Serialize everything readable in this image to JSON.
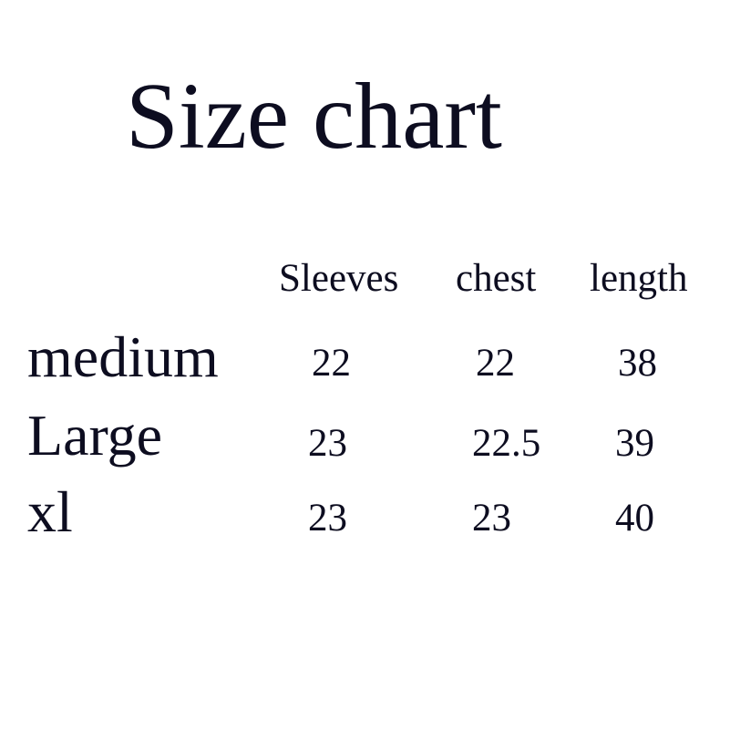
{
  "title": "Size chart",
  "table": {
    "columns": [
      "Sleeves",
      "chest",
      "length"
    ],
    "rows": [
      {
        "size": "medium",
        "values": [
          "22",
          "22",
          "38"
        ]
      },
      {
        "size": "Large",
        "values": [
          "23",
          "22.5",
          "39"
        ]
      },
      {
        "size": "xl",
        "values": [
          "23",
          "23",
          "40"
        ]
      }
    ]
  },
  "colors": {
    "text": "#0d0d20",
    "background": "#ffffff"
  }
}
